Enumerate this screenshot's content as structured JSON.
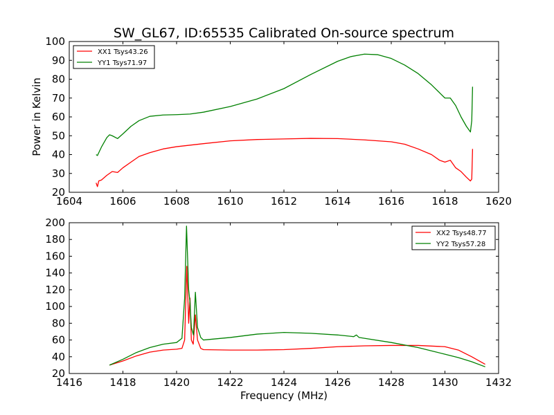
{
  "title": "SW_GL67, ID:65535 Calibrated On-source spectrum",
  "chart_data": [
    {
      "type": "line",
      "title": "SW_GL67, ID:65535 Calibrated On-source spectrum",
      "xlabel": "",
      "ylabel": "Power in Kelvin",
      "xlim": [
        1604,
        1620
      ],
      "ylim": [
        20,
        100
      ],
      "xticks": [
        1604,
        1606,
        1608,
        1610,
        1612,
        1614,
        1616,
        1618,
        1620
      ],
      "yticks": [
        20,
        30,
        40,
        50,
        60,
        70,
        80,
        90,
        100
      ],
      "grid": false,
      "legend_position": "top-left",
      "series": [
        {
          "name": "XX1 Tsys43.26",
          "color": "#ff0000",
          "x": [
            1605.0,
            1605.05,
            1605.1,
            1605.2,
            1605.4,
            1605.6,
            1605.8,
            1606.0,
            1606.3,
            1606.6,
            1607.0,
            1607.5,
            1608.0,
            1609.0,
            1610.0,
            1611.0,
            1612.0,
            1613.0,
            1614.0,
            1615.0,
            1616.0,
            1616.5,
            1617.0,
            1617.5,
            1617.8,
            1618.0,
            1618.2,
            1618.4,
            1618.6,
            1618.8,
            1618.95,
            1619.0,
            1619.03
          ],
          "y": [
            25,
            23,
            26,
            26.5,
            29,
            31,
            30.5,
            33,
            36,
            39,
            41,
            43,
            44.2,
            45.8,
            47.3,
            48.0,
            48.3,
            48.6,
            48.5,
            47.8,
            46.8,
            45.5,
            43,
            40,
            37,
            36,
            37,
            33,
            31,
            28,
            26,
            27,
            43
          ]
        },
        {
          "name": "YY1 Tsys71.97",
          "color": "#008000",
          "x": [
            1605.0,
            1605.05,
            1605.2,
            1605.4,
            1605.5,
            1605.6,
            1605.8,
            1606.0,
            1606.3,
            1606.6,
            1607.0,
            1607.5,
            1608.0,
            1608.5,
            1609.0,
            1610.0,
            1611.0,
            1612.0,
            1613.0,
            1614.0,
            1614.5,
            1615.0,
            1615.5,
            1616.0,
            1616.5,
            1617.0,
            1617.5,
            1618.0,
            1618.2,
            1618.4,
            1618.6,
            1618.8,
            1618.95,
            1619.0,
            1619.03
          ],
          "y": [
            40,
            39.5,
            44,
            49,
            50.5,
            50,
            48.5,
            51,
            55,
            58,
            60.3,
            61,
            61.2,
            61.5,
            62.5,
            65.5,
            69.5,
            75,
            82.5,
            89.5,
            92,
            93.3,
            93,
            91,
            87.5,
            83,
            77,
            70,
            70,
            66,
            60,
            55,
            52,
            58,
            76
          ]
        }
      ]
    },
    {
      "type": "line",
      "title": "",
      "xlabel": "Frequency (MHz)",
      "ylabel": "",
      "xlim": [
        1416,
        1432
      ],
      "ylim": [
        20,
        200
      ],
      "xticks": [
        1416,
        1418,
        1420,
        1422,
        1424,
        1426,
        1428,
        1430,
        1432
      ],
      "yticks": [
        20,
        40,
        60,
        80,
        100,
        120,
        140,
        160,
        180,
        200
      ],
      "grid": false,
      "legend_position": "top-right",
      "series": [
        {
          "name": "XX2 Tsys48.77",
          "color": "#ff0000",
          "x": [
            1417.5,
            1418.0,
            1418.5,
            1419.0,
            1419.5,
            1420.0,
            1420.2,
            1420.3,
            1420.38,
            1420.45,
            1420.5,
            1420.55,
            1420.62,
            1420.7,
            1420.78,
            1420.9,
            1421.0,
            1422.0,
            1423.0,
            1424.0,
            1425.0,
            1426.0,
            1427.0,
            1428.0,
            1429.0,
            1430.0,
            1430.5,
            1431.0,
            1431.5
          ],
          "y": [
            30,
            35,
            41,
            45.5,
            48,
            49,
            50,
            60,
            148,
            80,
            110,
            60,
            55,
            90,
            60,
            50,
            48.5,
            48,
            48,
            48.5,
            50,
            52,
            53,
            53.5,
            53.5,
            52,
            48,
            40,
            31
          ]
        },
        {
          "name": "YY2 Tsys57.28",
          "color": "#008000",
          "x": [
            1417.5,
            1418.0,
            1418.5,
            1419.0,
            1419.5,
            1420.0,
            1420.2,
            1420.3,
            1420.37,
            1420.45,
            1420.5,
            1420.55,
            1420.63,
            1420.7,
            1420.78,
            1420.9,
            1421.0,
            1422.0,
            1423.0,
            1424.0,
            1425.0,
            1426.0,
            1426.6,
            1426.7,
            1426.8,
            1427.0,
            1428.0,
            1429.0,
            1430.0,
            1430.5,
            1431.0,
            1431.5
          ],
          "y": [
            30,
            37,
            45,
            51,
            55,
            57,
            62,
            110,
            196,
            120,
            105,
            75,
            66,
            117,
            75,
            63,
            60,
            63,
            67,
            69,
            68,
            66,
            64,
            66,
            63,
            62,
            57,
            51,
            43,
            39,
            34,
            28
          ]
        }
      ]
    }
  ]
}
